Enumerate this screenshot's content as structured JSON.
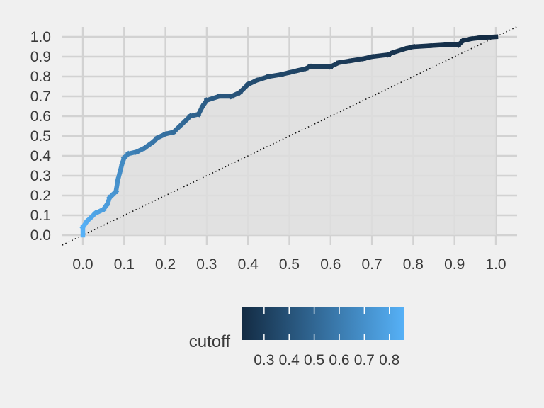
{
  "chart_data": {
    "type": "line",
    "title": "",
    "xlabel": "",
    "ylabel": "",
    "xlim": [
      0,
      1
    ],
    "ylim": [
      0,
      1
    ],
    "grid": true,
    "x_ticks": [
      "0.0",
      "0.1",
      "0.2",
      "0.3",
      "0.4",
      "0.5",
      "0.6",
      "0.7",
      "0.8",
      "0.9",
      "1.0"
    ],
    "y_ticks": [
      "0.0",
      "0.1",
      "0.2",
      "0.3",
      "0.4",
      "0.5",
      "0.6",
      "0.7",
      "0.8",
      "0.9",
      "1.0"
    ],
    "reference_line": {
      "style": "dotted",
      "from": [
        0,
        0
      ],
      "to": [
        1,
        1
      ]
    },
    "series": [
      {
        "x": [
          0.0,
          0.0,
          0.01,
          0.02,
          0.03,
          0.04,
          0.05,
          0.06,
          0.065,
          0.07,
          0.08,
          0.085,
          0.09,
          0.095,
          0.1,
          0.11,
          0.13,
          0.15,
          0.17,
          0.18,
          0.2,
          0.22,
          0.24,
          0.25,
          0.26,
          0.28,
          0.29,
          0.3,
          0.33,
          0.36,
          0.38,
          0.4,
          0.42,
          0.45,
          0.48,
          0.5,
          0.52,
          0.54,
          0.55,
          0.58,
          0.6,
          0.62,
          0.65,
          0.68,
          0.7,
          0.74,
          0.75,
          0.78,
          0.8,
          0.84,
          0.88,
          0.91,
          0.92,
          0.94,
          0.96,
          1.0
        ],
        "y": [
          0.0,
          0.04,
          0.07,
          0.09,
          0.11,
          0.12,
          0.13,
          0.16,
          0.19,
          0.2,
          0.22,
          0.28,
          0.32,
          0.36,
          0.39,
          0.41,
          0.42,
          0.44,
          0.47,
          0.49,
          0.51,
          0.52,
          0.56,
          0.58,
          0.6,
          0.61,
          0.65,
          0.68,
          0.7,
          0.7,
          0.72,
          0.76,
          0.78,
          0.8,
          0.81,
          0.82,
          0.83,
          0.84,
          0.85,
          0.85,
          0.85,
          0.87,
          0.88,
          0.89,
          0.9,
          0.91,
          0.92,
          0.94,
          0.95,
          0.955,
          0.96,
          0.96,
          0.98,
          0.99,
          0.995,
          1.0
        ],
        "cutoff": [
          0.86,
          0.86,
          0.84,
          0.82,
          0.8,
          0.79,
          0.78,
          0.76,
          0.75,
          0.74,
          0.72,
          0.7,
          0.69,
          0.68,
          0.66,
          0.64,
          0.62,
          0.6,
          0.58,
          0.56,
          0.55,
          0.53,
          0.52,
          0.5,
          0.49,
          0.47,
          0.46,
          0.45,
          0.43,
          0.41,
          0.4,
          0.38,
          0.37,
          0.36,
          0.35,
          0.34,
          0.33,
          0.32,
          0.31,
          0.3,
          0.3,
          0.29,
          0.28,
          0.27,
          0.27,
          0.26,
          0.26,
          0.25,
          0.25,
          0.24,
          0.24,
          0.23,
          0.23,
          0.22,
          0.22,
          0.21
        ]
      }
    ],
    "color_legend": {
      "title": "cutoff",
      "min": 0.21,
      "max": 0.86,
      "tick_values": [
        0.3,
        0.4,
        0.5,
        0.6,
        0.7,
        0.8
      ],
      "tick_labels": [
        "0.3",
        "0.4",
        "0.5",
        "0.6",
        "0.7",
        "0.8"
      ],
      "low_color": "#132b43",
      "high_color": "#56b1f7"
    },
    "area_fill_color": "#dedede",
    "background_color": "#f0f0f0",
    "grid_color": "#d2d2d2"
  }
}
